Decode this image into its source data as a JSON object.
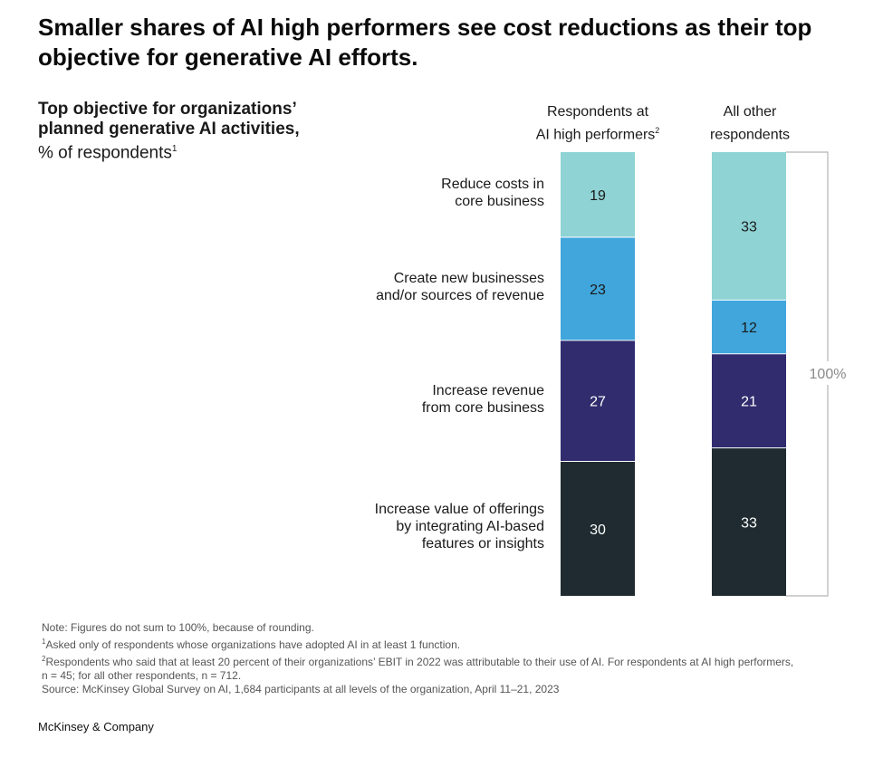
{
  "title": "Smaller shares of AI high performers see cost reductions as their top objective for generative AI efforts.",
  "subtitle": {
    "bold": "Top objective for organizations’ planned generative AI activities,",
    "unit": "% of respondents",
    "unit_sup": "1"
  },
  "chart_data": {
    "type": "bar",
    "stacked": true,
    "categories": [
      "Reduce costs in\ncore business",
      "Create new businesses\nand/or sources of revenue",
      "Increase revenue\nfrom core business",
      "Increase value of offerings\nby integrating AI-based\nfeatures or insights"
    ],
    "series": [
      {
        "name": "Respondents at AI high performers",
        "label": "Respondents at\nAI high performers",
        "label_sup": "2",
        "values": [
          19,
          23,
          27,
          30
        ]
      },
      {
        "name": "All other respondents",
        "label": "All other\nrespondents",
        "label_sup": "",
        "values": [
          33,
          12,
          21,
          33
        ]
      }
    ],
    "colors": [
      "#8fd3d4",
      "#40a6dc",
      "#302c6e",
      "#1f2b30"
    ],
    "label_colors": [
      "#1a1a1a",
      "#1a1a1a",
      "#ffffff",
      "#ffffff"
    ],
    "bracket_label": "100%"
  },
  "footnotes": {
    "note": "Note: Figures do not sum to 100%, because of rounding.",
    "fn1_mark": "1",
    "fn1": "Asked only of respondents whose organizations have adopted AI in at least 1 function.",
    "fn2_mark": "2",
    "fn2": "Respondents who said that at least 20 percent of their organizations’ EBIT in 2022 was attributable to their use of AI. For respondents at AI high performers,\nn = 45; for all other respondents, n = 712.",
    "source": "Source: McKinsey Global Survey on AI, 1,684 participants at all levels of the organization, April 11–21, 2023"
  },
  "brand": "McKinsey & Company"
}
